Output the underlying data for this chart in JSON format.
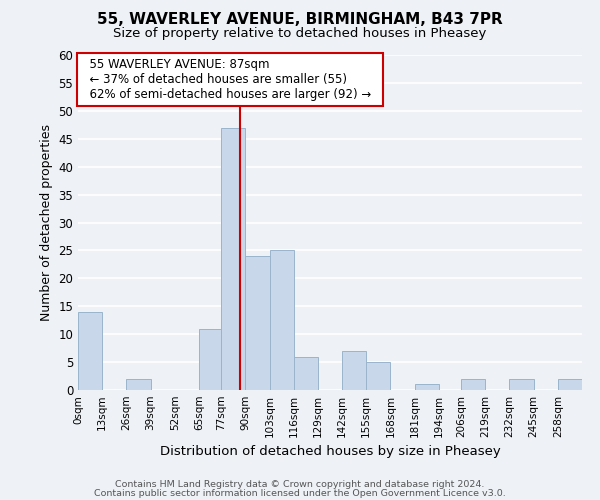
{
  "title": "55, WAVERLEY AVENUE, BIRMINGHAM, B43 7PR",
  "subtitle": "Size of property relative to detached houses in Pheasey",
  "xlabel": "Distribution of detached houses by size in Pheasey",
  "ylabel": "Number of detached properties",
  "bar_color": "#c8d8ea",
  "bar_edgecolor": "#9ab4cc",
  "bar_heights": [
    14,
    0,
    2,
    0,
    0,
    11,
    47,
    24,
    25,
    6,
    0,
    7,
    5,
    0,
    1,
    0,
    2,
    0,
    2,
    0,
    2
  ],
  "bin_edges": [
    0,
    13,
    26,
    39,
    52,
    65,
    77,
    90,
    103,
    116,
    129,
    142,
    155,
    168,
    181,
    194,
    206,
    219,
    232,
    245,
    258,
    271
  ],
  "tick_labels": [
    "0sqm",
    "13sqm",
    "26sqm",
    "39sqm",
    "52sqm",
    "65sqm",
    "77sqm",
    "90sqm",
    "103sqm",
    "116sqm",
    "129sqm",
    "142sqm",
    "155sqm",
    "168sqm",
    "181sqm",
    "194sqm",
    "206sqm",
    "219sqm",
    "232sqm",
    "245sqm",
    "258sqm"
  ],
  "ylim": [
    0,
    60
  ],
  "yticks": [
    0,
    5,
    10,
    15,
    20,
    25,
    30,
    35,
    40,
    45,
    50,
    55,
    60
  ],
  "property_value": 87,
  "vline_color": "#cc0000",
  "annotation_title": "55 WAVERLEY AVENUE: 87sqm",
  "annotation_line1": "← 37% of detached houses are smaller (55)",
  "annotation_line2": "62% of semi-detached houses are larger (92) →",
  "annotation_box_color": "#ffffff",
  "annotation_box_edgecolor": "#cc0000",
  "footer1": "Contains HM Land Registry data © Crown copyright and database right 2024.",
  "footer2": "Contains public sector information licensed under the Open Government Licence v3.0.",
  "background_color": "#eef2f6",
  "grid_color": "#ffffff"
}
